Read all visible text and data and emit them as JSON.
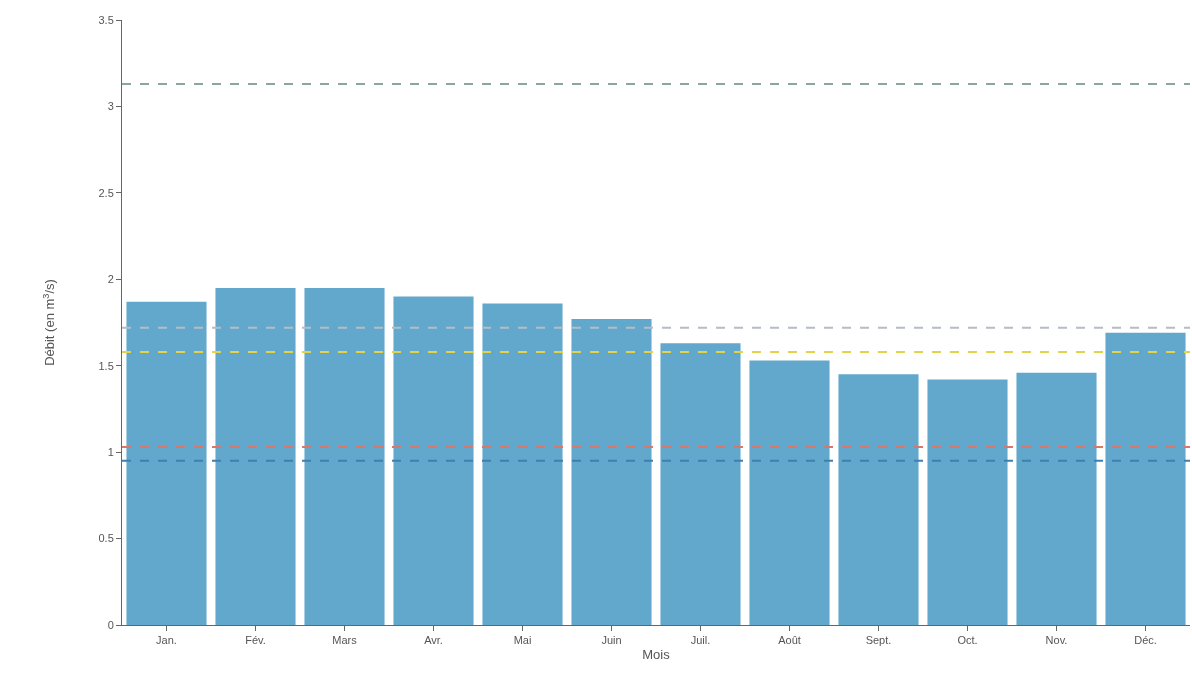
{
  "chart_data": {
    "type": "bar",
    "xlabel": "Mois",
    "ylabel": "Débit (en m$^{3}$/s)",
    "categories": [
      "Jan.",
      "Fév.",
      "Mars",
      "Avr.",
      "Mai",
      "Juin",
      "Juil.",
      "Août",
      "Sept.",
      "Oct.",
      "Nov.",
      "Déc."
    ],
    "values": [
      1.87,
      1.95,
      1.95,
      1.9,
      1.86,
      1.77,
      1.63,
      1.53,
      1.45,
      1.42,
      1.46,
      1.69
    ],
    "color": "#62a8cd",
    "ylim": [
      0,
      3.5
    ],
    "yticks": [
      0,
      0.5,
      1,
      1.5,
      2,
      2.5,
      3,
      3.5
    ],
    "ref_lines": [
      {
        "axis": "y",
        "value": 3.13,
        "color": "#8aa6a0",
        "line_style": "dashed"
      },
      {
        "axis": "y",
        "value": 1.72,
        "color": "#b4bcc4",
        "line_style": "dashed"
      },
      {
        "axis": "y",
        "value": 1.58,
        "color": "#e3d24c",
        "line_style": "dashed"
      },
      {
        "axis": "y",
        "value": 1.03,
        "color": "#d9776a",
        "line_style": "dashed"
      },
      {
        "axis": "y",
        "value": 0.95,
        "color": "#3f7fb0",
        "line_style": "dashed"
      }
    ]
  }
}
